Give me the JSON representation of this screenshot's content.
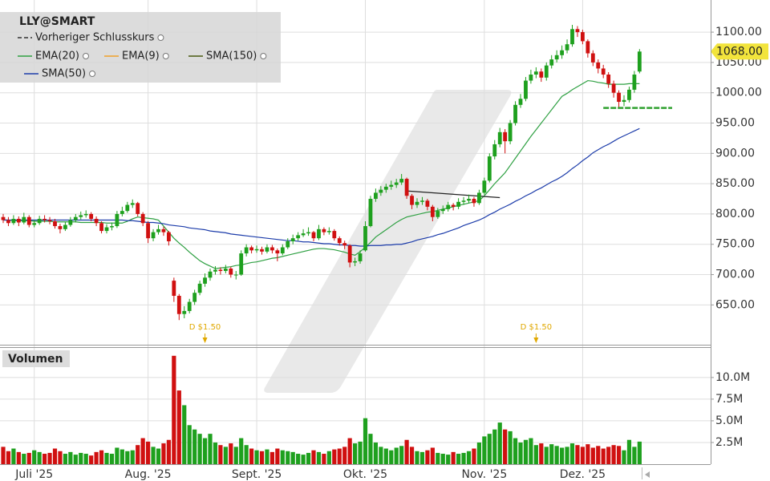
{
  "chart_data": [
    {
      "type": "candlestick",
      "title": "LLY@SMART",
      "categories": [
        null,
        null,
        null,
        null,
        null,
        null,
        "Juli '25",
        null,
        null,
        null,
        null,
        null,
        null,
        null,
        null,
        null,
        null,
        null,
        null,
        null,
        null,
        null,
        null,
        null,
        null,
        null,
        null,
        null,
        "Aug. '25",
        null,
        null,
        null,
        null,
        null,
        null,
        null,
        null,
        null,
        null,
        null,
        null,
        null,
        null,
        null,
        null,
        null,
        null,
        null,
        null,
        "Sept. '25",
        null,
        null,
        null,
        null,
        null,
        null,
        null,
        null,
        null,
        null,
        null,
        null,
        null,
        null,
        null,
        null,
        null,
        null,
        null,
        null,
        "Okt. '25",
        null,
        null,
        null,
        null,
        null,
        null,
        null,
        null,
        null,
        null,
        null,
        null,
        null,
        null,
        null,
        null,
        null,
        null,
        null,
        null,
        null,
        null,
        "Nov. '25",
        null,
        null,
        null,
        null,
        null,
        null,
        null,
        null,
        null,
        null,
        null,
        null,
        null,
        null,
        null,
        null,
        null,
        null,
        "Dez. '25",
        null,
        null,
        null,
        null,
        null,
        null,
        null,
        null,
        null,
        null,
        null
      ],
      "open": [
        795,
        790,
        785,
        792,
        786,
        795,
        782,
        785,
        792,
        790,
        788,
        780,
        775,
        782,
        790,
        795,
        798,
        800,
        792,
        785,
        772,
        778,
        780,
        800,
        805,
        815,
        818,
        800,
        785,
        760,
        770,
        775,
        770,
        690,
        665,
        635,
        640,
        655,
        670,
        685,
        695,
        705,
        708,
        706,
        710,
        700,
        700,
        735,
        745,
        740,
        742,
        738,
        745,
        740,
        735,
        745,
        755,
        760,
        765,
        768,
        770,
        760,
        775,
        770,
        772,
        760,
        752,
        748,
        720,
        722,
        740,
        780,
        825,
        835,
        840,
        845,
        848,
        852,
        858,
        830,
        815,
        820,
        822,
        812,
        795,
        805,
        808,
        815,
        812,
        820,
        822,
        825,
        818,
        835,
        855,
        895,
        915,
        935,
        920,
        950,
        980,
        990,
        1020,
        1030,
        1035,
        1025,
        1045,
        1055,
        1062,
        1070,
        1080,
        1105,
        1100,
        1085,
        1065,
        1050,
        1040,
        1030,
        1015,
        1000,
        985,
        988,
        1005,
        1035
      ],
      "high": [
        800,
        795,
        798,
        796,
        802,
        798,
        790,
        797,
        798,
        795,
        792,
        784,
        787,
        795,
        800,
        804,
        806,
        803,
        796,
        788,
        783,
        786,
        805,
        812,
        820,
        824,
        820,
        803,
        788,
        775,
        782,
        779,
        772,
        695,
        668,
        648,
        660,
        675,
        690,
        702,
        710,
        714,
        712,
        716,
        713,
        706,
        740,
        750,
        748,
        748,
        746,
        750,
        749,
        743,
        750,
        760,
        766,
        770,
        775,
        778,
        772,
        782,
        778,
        778,
        775,
        763,
        756,
        750,
        728,
        740,
        788,
        830,
        842,
        846,
        850,
        855,
        858,
        866,
        860,
        833,
        826,
        828,
        825,
        815,
        810,
        814,
        820,
        818,
        826,
        828,
        832,
        828,
        840,
        860,
        900,
        922,
        942,
        940,
        955,
        986,
        998,
        1026,
        1038,
        1042,
        1040,
        1050,
        1062,
        1070,
        1078,
        1088,
        1112,
        1110,
        1104,
        1088,
        1070,
        1055,
        1046,
        1034,
        1020,
        1004,
        996,
        1010,
        1036,
        1072
      ],
      "low": [
        785,
        780,
        782,
        780,
        783,
        778,
        778,
        782,
        786,
        783,
        776,
        768,
        772,
        779,
        786,
        791,
        794,
        788,
        780,
        768,
        768,
        773,
        777,
        796,
        802,
        810,
        796,
        780,
        752,
        755,
        766,
        764,
        748,
        655,
        625,
        628,
        636,
        650,
        666,
        680,
        690,
        700,
        700,
        702,
        695,
        692,
        698,
        730,
        735,
        736,
        733,
        735,
        735,
        722,
        732,
        742,
        750,
        756,
        762,
        764,
        755,
        757,
        765,
        766,
        756,
        748,
        742,
        712,
        714,
        718,
        738,
        778,
        820,
        830,
        835,
        840,
        843,
        848,
        825,
        808,
        810,
        815,
        806,
        788,
        792,
        800,
        804,
        806,
        808,
        815,
        818,
        812,
        815,
        832,
        852,
        890,
        910,
        900,
        915,
        946,
        975,
        986,
        1015,
        1024,
        1018,
        1020,
        1040,
        1050,
        1056,
        1065,
        1076,
        1092,
        1080,
        1058,
        1044,
        1032,
        1024,
        1008,
        992,
        975,
        978,
        984,
        1000,
        1032
      ],
      "close": [
        790,
        785,
        792,
        786,
        795,
        782,
        785,
        792,
        790,
        788,
        780,
        775,
        782,
        790,
        795,
        798,
        800,
        792,
        785,
        772,
        778,
        780,
        800,
        805,
        815,
        818,
        800,
        785,
        760,
        770,
        775,
        770,
        755,
        665,
        635,
        640,
        655,
        670,
        685,
        695,
        705,
        708,
        706,
        710,
        700,
        700,
        735,
        745,
        740,
        742,
        738,
        745,
        740,
        735,
        745,
        755,
        760,
        765,
        768,
        770,
        760,
        775,
        770,
        772,
        760,
        752,
        748,
        720,
        722,
        735,
        780,
        825,
        835,
        840,
        845,
        848,
        852,
        858,
        830,
        815,
        820,
        822,
        812,
        795,
        805,
        808,
        815,
        812,
        820,
        822,
        825,
        818,
        835,
        855,
        895,
        915,
        935,
        920,
        950,
        980,
        990,
        1020,
        1030,
        1035,
        1025,
        1045,
        1055,
        1062,
        1070,
        1080,
        1105,
        1100,
        1085,
        1065,
        1050,
        1040,
        1030,
        1015,
        1000,
        985,
        988,
        1005,
        1030,
        1068
      ],
      "up_color": "#1ea01e",
      "down_color": "#d01010",
      "series": [
        {
          "name": "Vorheriger Schlusskurs",
          "color": "#333333",
          "dash": true
        },
        {
          "name": "EMA(20)",
          "color": "#2ea042",
          "values": [
            790,
            790,
            789,
            789,
            789,
            789,
            788,
            788,
            788,
            788,
            787,
            787,
            787,
            787,
            787,
            786,
            786,
            786,
            786,
            786,
            785,
            785,
            785,
            785,
            788,
            792,
            795,
            794,
            793,
            792,
            790,
            780,
            770,
            760,
            752,
            745,
            737,
            730,
            723,
            718,
            714,
            710,
            711,
            712,
            713,
            715,
            716,
            718,
            720,
            721,
            723,
            725,
            727,
            728,
            730,
            732,
            734,
            736,
            738,
            740,
            742,
            743,
            743,
            742,
            741,
            739,
            737,
            734,
            732,
            738,
            745,
            753,
            762,
            768,
            774,
            780,
            786,
            791,
            795,
            797,
            799,
            801,
            803,
            804,
            806,
            808,
            810,
            812,
            814,
            816,
            818,
            820,
            822,
            830,
            840,
            850,
            859,
            868,
            880,
            892,
            904,
            916,
            928,
            939,
            950,
            961,
            972,
            983,
            994,
            999,
            1005,
            1010,
            1015,
            1020,
            1019,
            1017,
            1016,
            1014,
            1014,
            1014,
            1014,
            1015,
            1015,
            1015
          ]
        },
        {
          "name": "EMA(9)",
          "color": "#f0a028"
        },
        {
          "name": "SMA(150)",
          "color": "#4a5a10"
        },
        {
          "name": "SMA(50)",
          "color": "#1c3caa",
          "values": [
            790,
            790,
            790,
            790,
            790,
            790,
            790,
            790,
            790,
            790,
            790,
            790,
            790,
            790,
            790,
            790,
            790,
            790,
            790,
            790,
            790,
            790,
            790,
            790,
            789,
            789,
            788,
            787,
            786,
            786,
            785,
            784,
            782,
            781,
            780,
            779,
            777,
            776,
            775,
            774,
            772,
            771,
            770,
            769,
            767,
            766,
            765,
            764,
            763,
            762,
            761,
            760,
            759,
            758,
            757,
            756,
            756,
            755,
            754,
            754,
            753,
            752,
            751,
            751,
            750,
            749,
            749,
            748,
            748,
            747,
            747,
            748,
            748,
            748,
            749,
            749,
            750,
            750,
            752,
            754,
            757,
            759,
            761,
            763,
            766,
            768,
            771,
            774,
            777,
            781,
            784,
            787,
            790,
            794,
            799,
            803,
            808,
            812,
            816,
            821,
            825,
            830,
            834,
            839,
            843,
            848,
            853,
            857,
            862,
            868,
            875,
            881,
            888,
            894,
            901,
            906,
            911,
            915,
            920,
            925,
            929,
            933,
            937,
            941
          ]
        }
      ],
      "ylim": [
        587,
        1153
      ],
      "yticks": [
        {
          "value": 650,
          "label": "650.00"
        },
        {
          "value": 700,
          "label": "700.00"
        },
        {
          "value": 750,
          "label": "750.00"
        },
        {
          "value": 800,
          "label": "800.00"
        },
        {
          "value": 850,
          "label": "850.00"
        },
        {
          "value": 900,
          "label": "900.00"
        },
        {
          "value": 950,
          "label": "950.00"
        },
        {
          "value": 1000,
          "label": "1000.00"
        },
        {
          "value": 1050,
          "label": "1050.00"
        },
        {
          "value": 1100,
          "label": "1100.00"
        }
      ],
      "grid": true,
      "price_tag": {
        "value": 1068,
        "label": "1068.00",
        "color": "#f2e43c"
      },
      "annotations": [
        {
          "text": "D $1.50",
          "index": 39,
          "color": "#e0a800"
        },
        {
          "text": "D $1.50",
          "index": 103,
          "color": "#e0a800"
        }
      ],
      "trendline": {
        "index": [
          78,
          96
        ],
        "values": [
          838,
          827
        ],
        "color": "#222222"
      },
      "level": {
        "value": 975,
        "from_index": 116,
        "color": "#2ea02e"
      }
    },
    {
      "type": "bar",
      "title": "Volumen",
      "values": [
        2.0,
        1.5,
        1.8,
        1.4,
        1.2,
        1.3,
        1.6,
        1.4,
        1.2,
        1.3,
        1.8,
        1.5,
        1.2,
        1.4,
        1.1,
        1.3,
        1.2,
        1.0,
        1.4,
        1.6,
        1.3,
        1.2,
        1.9,
        1.7,
        1.5,
        1.6,
        2.2,
        3.0,
        2.6,
        2.0,
        1.8,
        2.4,
        2.8,
        12.5,
        8.5,
        6.8,
        4.5,
        4.0,
        3.5,
        3.0,
        3.5,
        2.5,
        2.2,
        2.0,
        2.4,
        2.0,
        3.0,
        2.2,
        1.8,
        1.6,
        1.5,
        1.7,
        1.4,
        1.8,
        1.6,
        1.5,
        1.4,
        1.2,
        1.1,
        1.3,
        1.6,
        1.4,
        1.2,
        1.5,
        1.7,
        1.8,
        2.0,
        3.0,
        2.4,
        2.6,
        5.3,
        3.5,
        2.5,
        2.0,
        1.8,
        1.6,
        1.9,
        2.1,
        2.8,
        2.0,
        1.5,
        1.4,
        1.6,
        1.9,
        1.3,
        1.2,
        1.1,
        1.4,
        1.2,
        1.3,
        1.5,
        1.8,
        2.5,
        3.2,
        3.5,
        4.0,
        4.8,
        4.0,
        3.8,
        3.0,
        2.5,
        2.8,
        3.0,
        2.2,
        2.4,
        2.0,
        2.3,
        2.1,
        1.9,
        2.0,
        2.4,
        2.2,
        2.0,
        2.3,
        1.9,
        2.1,
        1.8,
        2.0,
        2.2,
        2.1,
        1.6,
        2.8,
        2.0,
        2.6
      ],
      "ylim": [
        0,
        13.5
      ],
      "yticks": [
        {
          "value": 2.5,
          "label": "2.5M"
        },
        {
          "value": 5,
          "label": "5.0M"
        },
        {
          "value": 7.5,
          "label": "7.5M"
        },
        {
          "value": 10,
          "label": "10.0M"
        }
      ]
    }
  ]
}
